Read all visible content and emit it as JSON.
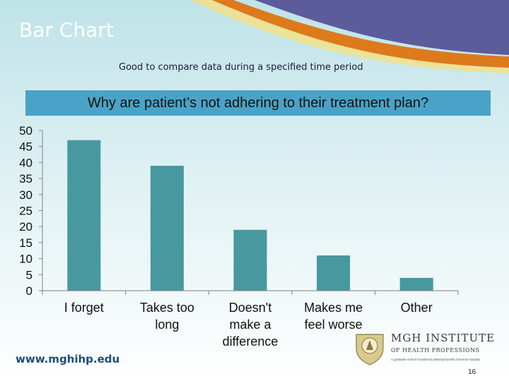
{
  "slide": {
    "title": "Bar Chart",
    "subtitle": "Good to compare data during a specified time period",
    "website": "www.mghihp.edu",
    "page_number": "16",
    "colors": {
      "background_top": "#bfe3e8",
      "purple_band": "#5c5c9c",
      "orange_band": "#dc7a1c",
      "yellow_band": "#f2e08a",
      "banner": "#4aa3c6",
      "bar": "#47999f"
    }
  },
  "logo": {
    "name": "MGH INSTITUTE",
    "sub": "OF HEALTH PROFESSIONS",
    "tagline": "A graduate school founded by Massachusetts General Hospital"
  },
  "chart_data": {
    "type": "bar",
    "title": "Why are patient’s not adhering to their treatment plan?",
    "categories": [
      "I forget",
      "Takes too long",
      "Doesn't make a difference",
      "Makes me feel worse",
      "Other"
    ],
    "category_label_lines": [
      [
        "I forget"
      ],
      [
        "Takes too",
        "long"
      ],
      [
        "Doesn't",
        "make a",
        "difference"
      ],
      [
        "Makes me",
        "feel worse"
      ],
      [
        "Other"
      ]
    ],
    "values": [
      47,
      39,
      19,
      11,
      4
    ],
    "ylim": [
      0,
      50
    ],
    "yticks": [
      0,
      5,
      10,
      15,
      20,
      25,
      30,
      35,
      40,
      45,
      50
    ],
    "xlabel": "",
    "ylabel": "",
    "grid": false,
    "bar_color": "#47999f"
  }
}
